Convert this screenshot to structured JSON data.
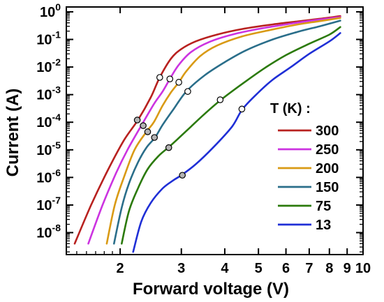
{
  "chart_data": {
    "type": "line",
    "xlabel": "Forward voltage (V)",
    "ylabel": "Current (A)",
    "x_scale": "log",
    "y_scale": "log",
    "xlim": [
      1.4,
      10.0
    ],
    "ylim": [
      1.6e-09,
      1.5
    ],
    "x_tick_values": [
      2,
      3,
      4,
      5,
      6,
      7,
      8,
      9,
      10
    ],
    "x_tick_labels": [
      "2",
      "3",
      "4",
      "5",
      "6",
      "7",
      "8",
      "9",
      "10"
    ],
    "y_tick_values": [
      1e-08,
      1e-07,
      1e-06,
      1e-05,
      0.0001,
      0.001,
      0.01,
      0.1,
      1
    ],
    "y_tick_bases": [
      "10",
      "10",
      "10",
      "10",
      "10",
      "10",
      "10",
      "10",
      "10"
    ],
    "y_tick_exps": [
      "-8",
      "-7",
      "-6",
      "-5",
      "-4",
      "-3",
      "-2",
      "-1",
      "0"
    ],
    "legend": {
      "title": "T (K) :",
      "position": "center-right"
    },
    "grid": false,
    "series": [
      {
        "name": "300",
        "color": "#b8211f",
        "points": [
          [
            1.48,
            4e-09
          ],
          [
            1.65,
            1e-07
          ],
          [
            1.85,
            2e-06
          ],
          [
            2.05,
            2.2e-05
          ],
          [
            2.25,
            0.00012
          ],
          [
            2.45,
            0.0008
          ],
          [
            2.6,
            0.0042
          ],
          [
            2.8,
            0.02
          ],
          [
            3.0,
            0.045
          ],
          [
            3.3,
            0.085
          ],
          [
            3.8,
            0.15
          ],
          [
            4.5,
            0.24
          ],
          [
            5.5,
            0.35
          ],
          [
            6.5,
            0.45
          ],
          [
            7.5,
            0.56
          ],
          [
            8.6,
            0.7
          ]
        ],
        "markers": [
          [
            2.24,
            0.00012
          ],
          [
            2.6,
            0.0042
          ]
        ]
      },
      {
        "name": "250",
        "color": "#cc33e0",
        "points": [
          [
            1.62,
            4e-09
          ],
          [
            1.78,
            1e-07
          ],
          [
            1.95,
            1.5e-06
          ],
          [
            2.1,
            1e-05
          ],
          [
            2.3,
            7.5e-05
          ],
          [
            2.5,
            0.00045
          ],
          [
            2.65,
            0.0013
          ],
          [
            2.78,
            0.0037
          ],
          [
            2.95,
            0.012
          ],
          [
            3.2,
            0.035
          ],
          [
            3.6,
            0.08
          ],
          [
            4.2,
            0.15
          ],
          [
            5.0,
            0.24
          ],
          [
            6.0,
            0.35
          ],
          [
            7.0,
            0.47
          ],
          [
            8.6,
            0.65
          ]
        ],
        "markers": [
          [
            2.33,
            7.5e-05
          ],
          [
            2.78,
            0.0037
          ]
        ]
      },
      {
        "name": "200",
        "color": "#d99a14",
        "points": [
          [
            1.83,
            4e-09
          ],
          [
            1.93,
            1e-07
          ],
          [
            2.05,
            1e-06
          ],
          [
            2.2,
            1e-05
          ],
          [
            2.38,
            4.5e-05
          ],
          [
            2.5,
            0.0001
          ],
          [
            2.65,
            0.0004
          ],
          [
            2.8,
            0.0012
          ],
          [
            2.95,
            0.0028
          ],
          [
            3.1,
            0.007
          ],
          [
            3.4,
            0.025
          ],
          [
            3.8,
            0.06
          ],
          [
            4.5,
            0.13
          ],
          [
            5.5,
            0.23
          ],
          [
            6.5,
            0.35
          ],
          [
            7.5,
            0.46
          ],
          [
            8.6,
            0.6
          ]
        ],
        "markers": [
          [
            2.4,
            4.5e-05
          ],
          [
            2.95,
            0.0028
          ]
        ]
      },
      {
        "name": "150",
        "color": "#2a6e8a",
        "points": [
          [
            1.92,
            4e-09
          ],
          [
            2.02,
            8e-08
          ],
          [
            2.12,
            6e-07
          ],
          [
            2.25,
            3.5e-06
          ],
          [
            2.38,
            1.2e-05
          ],
          [
            2.52,
            2.8e-05
          ],
          [
            2.65,
            8e-05
          ],
          [
            2.85,
            0.0003
          ],
          [
            3.1,
            0.0013
          ],
          [
            3.5,
            0.005
          ],
          [
            4.0,
            0.015
          ],
          [
            4.6,
            0.04
          ],
          [
            5.5,
            0.1
          ],
          [
            6.5,
            0.19
          ],
          [
            7.5,
            0.3
          ],
          [
            8.6,
            0.48
          ]
        ],
        "markers": [
          [
            2.51,
            2.8e-05
          ],
          [
            3.13,
            0.0013
          ]
        ]
      },
      {
        "name": "75",
        "color": "#2b7a0b",
        "points": [
          [
            2.02,
            4e-09
          ],
          [
            2.12,
            6e-08
          ],
          [
            2.25,
            4e-07
          ],
          [
            2.4,
            2e-06
          ],
          [
            2.58,
            6e-06
          ],
          [
            2.75,
            1.2e-05
          ],
          [
            2.9,
            2.2e-05
          ],
          [
            3.2,
            7e-05
          ],
          [
            3.5,
            0.0002
          ],
          [
            3.9,
            0.00065
          ],
          [
            4.5,
            0.0025
          ],
          [
            5.2,
            0.009
          ],
          [
            6.0,
            0.027
          ],
          [
            7.0,
            0.07
          ],
          [
            8.0,
            0.15
          ],
          [
            8.6,
            0.28
          ]
        ],
        "markers": [
          [
            2.76,
            1.2e-05
          ],
          [
            3.88,
            0.00065
          ]
        ]
      },
      {
        "name": "13",
        "color": "#1f2fd6",
        "points": [
          [
            2.18,
            2e-09
          ],
          [
            2.3,
            2.5e-08
          ],
          [
            2.45,
            1.2e-07
          ],
          [
            2.65,
            4e-07
          ],
          [
            2.85,
            8e-07
          ],
          [
            3.0,
            1.2e-06
          ],
          [
            3.3,
            3e-06
          ],
          [
            3.7,
            1.2e-05
          ],
          [
            4.2,
            7e-05
          ],
          [
            4.5,
            0.0003
          ],
          [
            5.0,
            0.0012
          ],
          [
            5.5,
            0.0035
          ],
          [
            6.2,
            0.01
          ],
          [
            7.0,
            0.03
          ],
          [
            8.0,
            0.085
          ],
          [
            8.6,
            0.17
          ]
        ],
        "markers": [
          [
            3.02,
            1.2e-06
          ],
          [
            4.48,
            0.0003
          ]
        ]
      }
    ]
  }
}
